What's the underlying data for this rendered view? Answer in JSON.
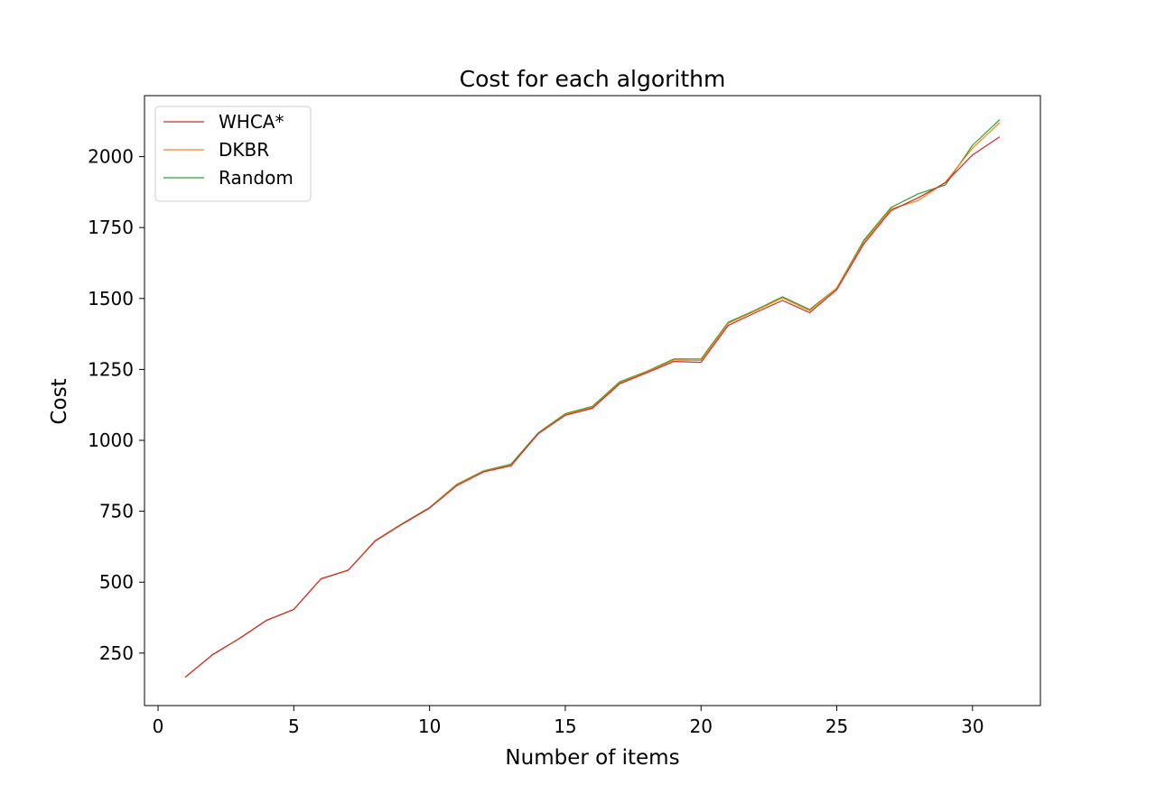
{
  "chart_data": {
    "type": "line",
    "title": "Cost for each algorithm",
    "xlabel": "Number of items",
    "ylabel": "Cost",
    "xlim": [
      -0.5,
      32.5
    ],
    "ylim": [
      65,
      2215
    ],
    "xticks": [
      0,
      5,
      10,
      15,
      20,
      25,
      30
    ],
    "yticks": [
      250,
      500,
      750,
      1000,
      1250,
      1500,
      1750,
      2000
    ],
    "grid": false,
    "legend_position": "top-left",
    "x": [
      1,
      2,
      3,
      4,
      5,
      6,
      7,
      8,
      9,
      10,
      11,
      12,
      13,
      14,
      15,
      16,
      17,
      18,
      19,
      20,
      21,
      22,
      23,
      24,
      25,
      26,
      27,
      28,
      29,
      30,
      31
    ],
    "series": [
      {
        "name": "WHCA*",
        "color": "#d62728",
        "values": [
          165,
          244,
          302,
          366,
          404,
          512,
          542,
          645,
          705,
          761,
          840,
          889,
          910,
          1023,
          1088,
          1113,
          1199,
          1238,
          1278,
          1275,
          1405,
          1450,
          1493,
          1450,
          1531,
          1693,
          1810,
          1855,
          1908,
          2006,
          2070
        ]
      },
      {
        "name": "DKBR",
        "color": "#ff7f0e",
        "values": [
          165,
          244,
          302,
          366,
          404,
          512,
          542,
          646,
          706,
          762,
          843,
          891,
          912,
          1024,
          1091,
          1116,
          1202,
          1241,
          1283,
          1282,
          1412,
          1456,
          1502,
          1457,
          1536,
          1700,
          1816,
          1845,
          1910,
          2030,
          2120
        ]
      },
      {
        "name": "Random",
        "color": "#2ca02c",
        "values": [
          165,
          244,
          302,
          366,
          404,
          512,
          542,
          647,
          707,
          763,
          845,
          893,
          916,
          1026,
          1094,
          1120,
          1206,
          1243,
          1287,
          1287,
          1416,
          1459,
          1506,
          1461,
          1537,
          1706,
          1821,
          1869,
          1900,
          2040,
          2130
        ]
      }
    ]
  }
}
